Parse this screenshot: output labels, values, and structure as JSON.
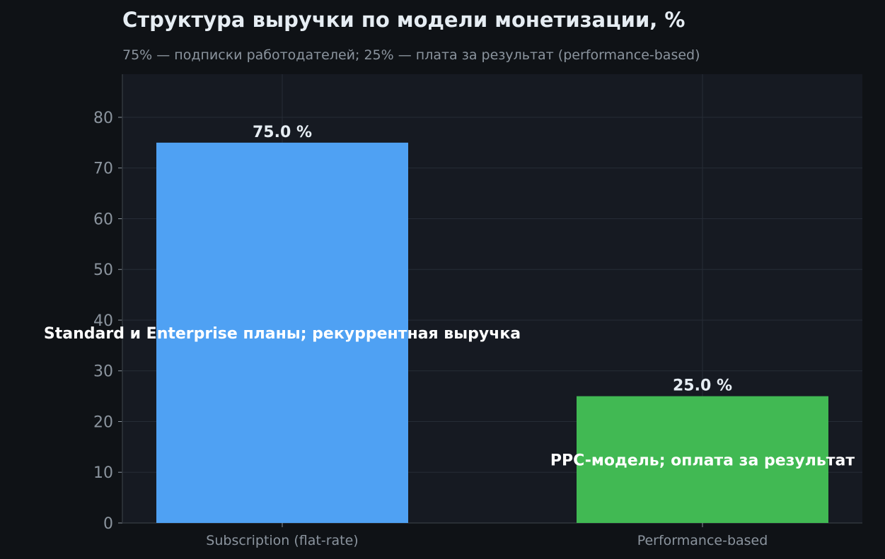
{
  "chart_data": {
    "type": "bar",
    "title": "Структура выручки по модели монетизации, %",
    "subtitle": "75% — подписки работодателей; 25% — плата за результат (performance-based)",
    "categories": [
      "Subscription (flat-rate)",
      "Performance-based"
    ],
    "values": [
      75.0,
      25.0
    ],
    "value_labels": [
      "75.0 %",
      "25.0 %"
    ],
    "annotations": [
      "Standard и Enterprise планы; рекуррентная выручка",
      "PPC-модель; оплата за результат"
    ],
    "colors": [
      "#4fa1f3",
      "#41b953"
    ],
    "ylim": [
      0,
      88.5
    ],
    "yticks": [
      0,
      10,
      20,
      30,
      40,
      50,
      60,
      70,
      80
    ],
    "grid": true,
    "xlabel": "",
    "ylabel": ""
  }
}
